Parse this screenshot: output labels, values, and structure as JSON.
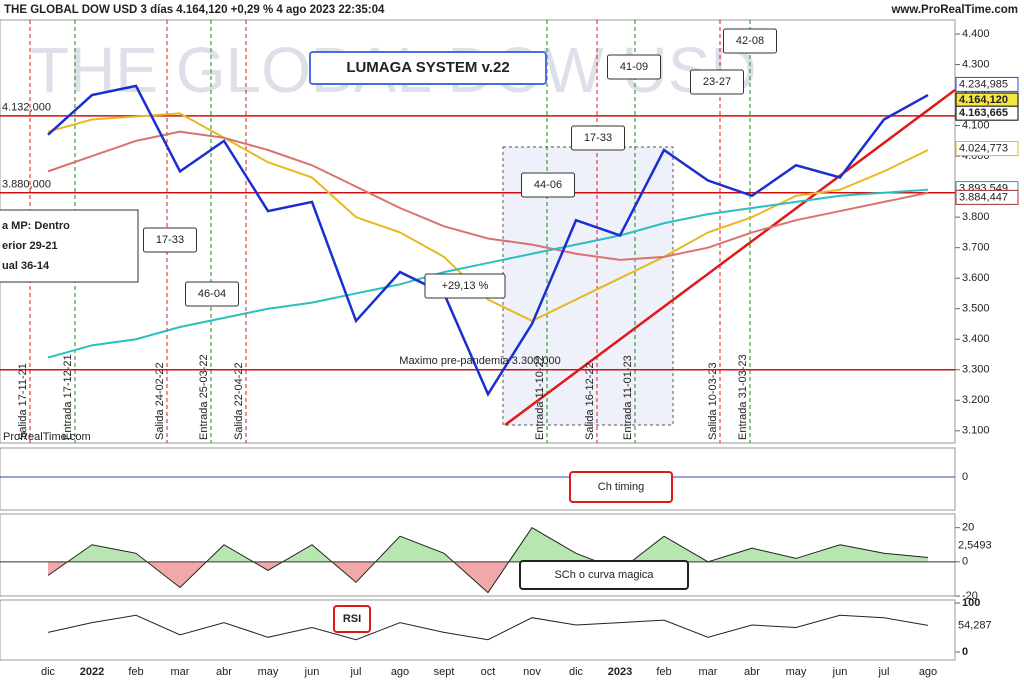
{
  "header": {
    "title": "THE GLOBAL DOW USD 3 días 4.164,120 +0,29 % 4 ago 2023 22:35:04",
    "site": "www.ProRealTime.com"
  },
  "chart_data": [
    {
      "type": "line",
      "title": "LUMAGA SYSTEM v.22",
      "watermark": "THE GLOBAL DOW USD",
      "source": "ProRealTime.com",
      "categories": [
        "dic",
        "2022",
        "feb",
        "mar",
        "abr",
        "may",
        "jun",
        "jul",
        "ago",
        "sept",
        "oct",
        "nov",
        "dic",
        "2023",
        "feb",
        "mar",
        "abr",
        "may",
        "jun",
        "jul",
        "ago"
      ],
      "series": [
        {
          "color": "#e8b820",
          "values": [
            4080,
            4120,
            4130,
            4140,
            4060,
            3980,
            3930,
            3800,
            3750,
            3670,
            3530,
            3460,
            3530,
            3600,
            3670,
            3750,
            3800,
            3870,
            3890,
            3950,
            4020
          ]
        },
        {
          "color": "#d9736f",
          "values": [
            3950,
            4000,
            4050,
            4080,
            4060,
            4020,
            3970,
            3900,
            3830,
            3770,
            3730,
            3710,
            3680,
            3660,
            3670,
            3700,
            3750,
            3790,
            3820,
            3850,
            3880
          ]
        },
        {
          "color": "#2bbfc0",
          "values": [
            3340,
            3380,
            3400,
            3440,
            3470,
            3500,
            3520,
            3550,
            3580,
            3620,
            3650,
            3680,
            3710,
            3740,
            3780,
            3810,
            3830,
            3850,
            3870,
            3880,
            3890
          ]
        },
        {
          "color": "#1a2fd0",
          "values": [
            4070,
            4200,
            4230,
            3950,
            4050,
            3820,
            3850,
            3460,
            3620,
            3550,
            3220,
            3450,
            3790,
            3740,
            4020,
            3920,
            3870,
            3970,
            3930,
            4120,
            4200
          ]
        }
      ],
      "ylim": [
        3060,
        4446
      ],
      "yticks": [
        {
          "value": 3100,
          "label": "3.100"
        },
        {
          "value": 3200,
          "label": "3.200"
        },
        {
          "value": 3300,
          "label": "3.300"
        },
        {
          "value": 3400,
          "label": "3.400"
        },
        {
          "value": 3500,
          "label": "3.500"
        },
        {
          "value": 3600,
          "label": "3.600"
        },
        {
          "value": 3700,
          "label": "3.700"
        },
        {
          "value": 3800,
          "label": "3.800"
        },
        {
          "value": 3900,
          "label": "3.900"
        },
        {
          "value": 4000,
          "label": "4.000"
        },
        {
          "value": 4100,
          "label": "4.100"
        },
        {
          "value": 4200,
          "label": "4.200"
        },
        {
          "value": 4300,
          "label": "4.300"
        },
        {
          "value": 4400,
          "label": "4.400"
        }
      ],
      "hlines": [
        {
          "value": 4132,
          "label": "4.132,000"
        },
        {
          "value": 3880,
          "label": "3.880,000"
        },
        {
          "value": 3300
        }
      ],
      "price_labels": [
        {
          "value": 4234.985,
          "label": "4.234,985",
          "color": "#3344cc"
        },
        {
          "value": 4164.12,
          "label": "4.164,120",
          "color": "#000000"
        },
        {
          "value": 4163.665,
          "label": "4.163,665",
          "color": "#000000"
        },
        {
          "value": 4024.773,
          "label": "4.024,773",
          "color": "#e8b820"
        },
        {
          "value": 3893.549,
          "label": "3.893,549",
          "color": "#1aa5a6"
        },
        {
          "value": 3884.447,
          "label": "3.884,447",
          "color": "#a03030"
        }
      ],
      "annotations": [
        {
          "text": "17-33"
        },
        {
          "text": "46-04"
        },
        {
          "text": "+29,13 %"
        },
        {
          "text": "44-06"
        },
        {
          "text": "17-33"
        },
        {
          "text": "41-09"
        },
        {
          "text": "23-27"
        },
        {
          "text": "42-08"
        },
        {
          "text": "Maximo pre-pandemia 3.300,000"
        }
      ],
      "signals": [
        {
          "text": "Salida 17-11-21"
        },
        {
          "text": "Entrada 17-12-21"
        },
        {
          "text": "Salida 24-02-22"
        },
        {
          "text": "Entrada 25-03-22"
        },
        {
          "text": "Salida 22-04-22"
        },
        {
          "text": "Entrada 11-10-22"
        },
        {
          "text": "Salida 16-12-22"
        },
        {
          "text": "Entrada 11-01-23"
        },
        {
          "text": "Salida 10-03-23"
        },
        {
          "text": "Entrada 31-03-23"
        }
      ],
      "info_box": [
        "a MP: Dentro",
        "erior 29-21",
        "ual  36-14"
      ]
    },
    {
      "type": "area",
      "title": "Ch timing",
      "yticks": [
        0
      ]
    },
    {
      "type": "area",
      "title": "SCh o curva magica",
      "ylim": [
        -20,
        28
      ],
      "yticks": [
        20,
        0,
        -20
      ],
      "values": [
        -8,
        10,
        5,
        -15,
        10,
        -5,
        10,
        -12,
        15,
        5,
        -18,
        20,
        5,
        -5,
        15,
        0,
        8,
        2,
        10,
        5,
        2.5493
      ],
      "last": {
        "value": 2.5493,
        "label": "2,5493"
      }
    },
    {
      "type": "line",
      "title": "RSI",
      "ylim": [
        0,
        100
      ],
      "yticks": [
        100,
        0
      ],
      "values": [
        40,
        60,
        75,
        35,
        60,
        30,
        50,
        25,
        60,
        40,
        25,
        70,
        55,
        60,
        65,
        30,
        55,
        50,
        75,
        70,
        54.287
      ],
      "last": {
        "value": 54.287,
        "label": "54,287"
      }
    }
  ]
}
